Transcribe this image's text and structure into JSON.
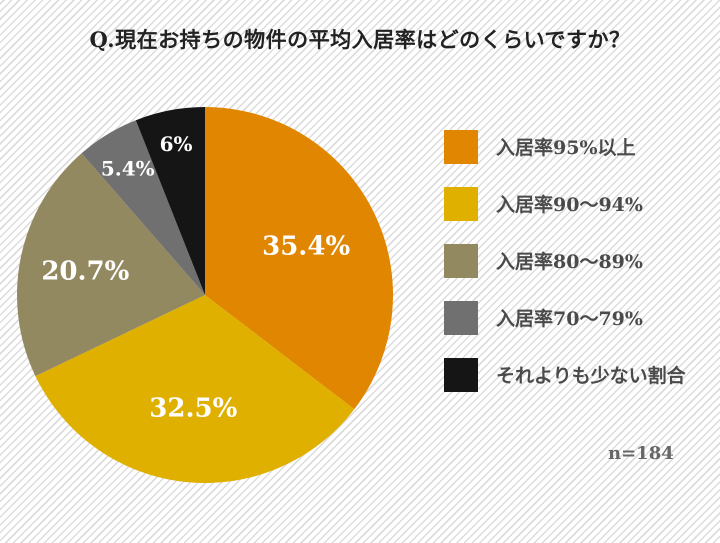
{
  "chart_data": {
    "type": "pie",
    "title": "Q.現在お持ちの物件の平均入居率はどのくらいですか？",
    "slices": [
      {
        "label": "入居率95%以上",
        "value": 35.4,
        "display": "35.4%",
        "color": "#E08600"
      },
      {
        "label": "入居率90〜94%",
        "value": 32.5,
        "display": "32.5%",
        "color": "#E0B000"
      },
      {
        "label": "入居率80〜89%",
        "value": 20.7,
        "display": "20.7%",
        "color": "#938961"
      },
      {
        "label": "入居率70〜79%",
        "value": 5.4,
        "display": "5.4%",
        "color": "#707070"
      },
      {
        "label": "それよりも少ない割合",
        "value": 6,
        "display": "6%",
        "color": "#151515"
      }
    ],
    "start": "top",
    "direction": "clockwise",
    "legend_position": "right",
    "note": "n=184"
  }
}
